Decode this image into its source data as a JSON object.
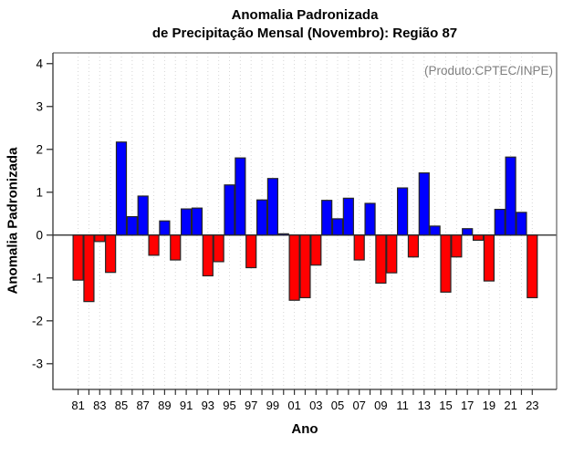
{
  "title": {
    "line1": "Anomalia Padronizada",
    "line2": "de Precipitação Mensal (Novembro): Região 87"
  },
  "annotation": "(Produto:CPTEC/INPE)",
  "chart_data": {
    "type": "bar",
    "title": "Anomalia Padronizada de Precipitação Mensal (Novembro): Região 87",
    "xlabel": "Ano",
    "ylabel": "Anomalia Padronizada",
    "categories": [
      "81",
      "82",
      "83",
      "84",
      "85",
      "86",
      "87",
      "88",
      "89",
      "90",
      "91",
      "92",
      "93",
      "94",
      "95",
      "96",
      "97",
      "98",
      "99",
      "00",
      "01",
      "02",
      "03",
      "04",
      "05",
      "06",
      "07",
      "08",
      "09",
      "10",
      "11",
      "12",
      "13",
      "14",
      "15",
      "16",
      "17",
      "18",
      "19",
      "20",
      "21",
      "22",
      "23"
    ],
    "values": [
      -1.05,
      -1.55,
      -0.15,
      -0.87,
      2.17,
      0.43,
      0.91,
      -0.47,
      0.33,
      -0.58,
      0.61,
      0.63,
      -0.95,
      -0.62,
      1.17,
      1.8,
      -0.76,
      0.82,
      1.32,
      0.03,
      -1.52,
      -1.46,
      -0.7,
      0.81,
      0.38,
      0.86,
      -0.58,
      0.74,
      -1.12,
      -0.88,
      1.1,
      -0.51,
      1.45,
      0.21,
      -1.33,
      -0.51,
      0.15,
      -0.12,
      -1.07,
      0.6,
      1.82,
      0.53,
      -1.46
    ],
    "x_tick_labels": [
      "81",
      "83",
      "85",
      "87",
      "89",
      "91",
      "93",
      "95",
      "97",
      "99",
      "01",
      "03",
      "05",
      "07",
      "09",
      "11",
      "13",
      "15",
      "17",
      "19",
      "21",
      "23"
    ],
    "x_label_every": 2,
    "y_ticks": [
      4,
      3,
      2,
      1,
      0,
      -1,
      -2,
      -3
    ],
    "ylim": [
      -3.6,
      4.25
    ],
    "grid": "vertical-dashed",
    "legend_position": "none",
    "colors": {
      "positive_bar": "#0000ff",
      "negative_bar": "#ff0000",
      "bar_border": "#262626",
      "gridline": "#d6d6d6",
      "zero_line": "#404040",
      "frame_top_right": "#6e6e6e",
      "axis": "#333333",
      "tick_label": "#000000",
      "annotation_text": "#7f7f7f"
    }
  }
}
